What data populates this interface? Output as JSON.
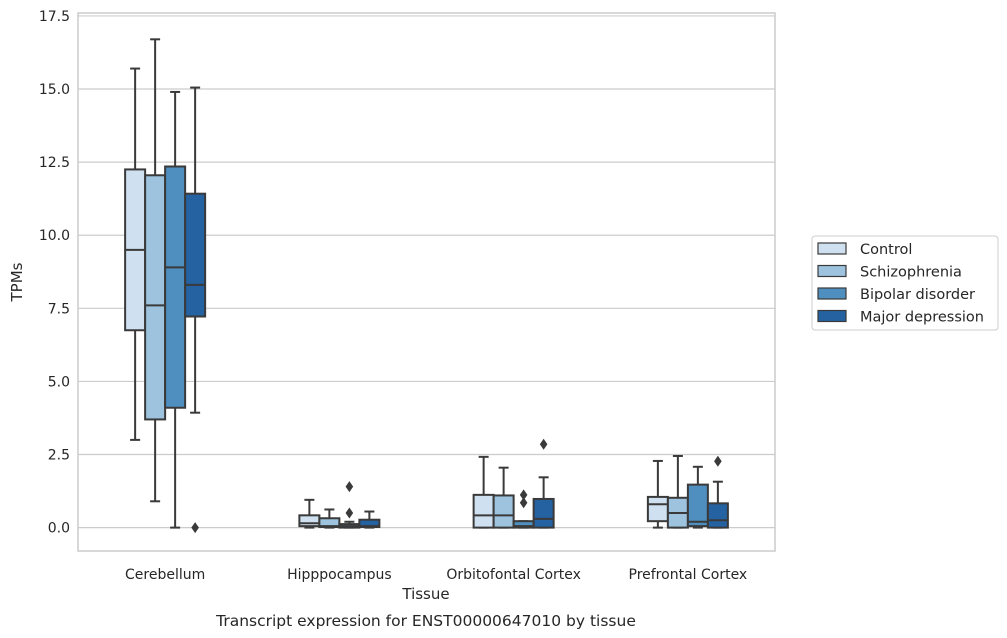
{
  "caption": "Transcript expression for ENST00000647010 by tissue",
  "colors": {
    "grid": "#cccccc",
    "frame": "#cccccc",
    "lines": "#3a3a3a",
    "background": "#ffffff"
  },
  "chart_data": {
    "type": "box",
    "xlabel": "Tissue",
    "ylabel": "TPMs",
    "ylim": [
      -0.8,
      17.6
    ],
    "yticks": [
      0.0,
      2.5,
      5.0,
      7.5,
      10.0,
      12.5,
      15.0,
      17.5
    ],
    "ytick_labels": [
      "0.0",
      "2.5",
      "5.0",
      "7.5",
      "10.0",
      "12.5",
      "15.0",
      "17.5"
    ],
    "grid": true,
    "legend_position": "right",
    "categories": [
      "Cerebellum",
      "Hipppocampus",
      "Orbitofontal Cortex",
      "Prefrontal Cortex"
    ],
    "series": [
      {
        "name": "Control",
        "color": "#cfe1f1",
        "boxes": [
          {
            "whislo": 3.0,
            "q1": 6.75,
            "med": 9.5,
            "q3": 12.25,
            "whishi": 15.7,
            "fliers": []
          },
          {
            "whislo": 0.0,
            "q1": 0.05,
            "med": 0.15,
            "q3": 0.42,
            "whishi": 0.95,
            "fliers": []
          },
          {
            "whislo": 0.0,
            "q1": 0.0,
            "med": 0.42,
            "q3": 1.12,
            "whishi": 2.42,
            "fliers": []
          },
          {
            "whislo": 0.0,
            "q1": 0.22,
            "med": 0.8,
            "q3": 1.05,
            "whishi": 2.28,
            "fliers": []
          }
        ]
      },
      {
        "name": "Schizophrenia",
        "color": "#9dc3de",
        "boxes": [
          {
            "whislo": 0.9,
            "q1": 3.7,
            "med": 7.6,
            "q3": 12.05,
            "whishi": 16.7,
            "fliers": []
          },
          {
            "whislo": 0.0,
            "q1": 0.02,
            "med": 0.05,
            "q3": 0.32,
            "whishi": 0.62,
            "fliers": []
          },
          {
            "whislo": 0.0,
            "q1": 0.0,
            "med": 0.42,
            "q3": 1.1,
            "whishi": 2.05,
            "fliers": []
          },
          {
            "whislo": 0.0,
            "q1": 0.0,
            "med": 0.5,
            "q3": 1.02,
            "whishi": 2.45,
            "fliers": []
          }
        ]
      },
      {
        "name": "Bipolar disorder",
        "color": "#4f8fbf",
        "boxes": [
          {
            "whislo": 0.0,
            "q1": 4.1,
            "med": 8.9,
            "q3": 12.35,
            "whishi": 14.9,
            "fliers": []
          },
          {
            "whislo": 0.0,
            "q1": 0.0,
            "med": 0.05,
            "q3": 0.12,
            "whishi": 0.2,
            "fliers": [
              1.4,
              0.5
            ]
          },
          {
            "whislo": 0.0,
            "q1": 0.0,
            "med": 0.05,
            "q3": 0.22,
            "whishi": 0.22,
            "fliers": [
              1.12,
              0.85
            ]
          },
          {
            "whislo": 0.0,
            "q1": 0.05,
            "med": 0.2,
            "q3": 1.47,
            "whishi": 2.08,
            "fliers": []
          }
        ]
      },
      {
        "name": "Major depression",
        "color": "#2462a2",
        "boxes": [
          {
            "whislo": 3.93,
            "q1": 7.22,
            "med": 8.3,
            "q3": 11.42,
            "whishi": 15.05,
            "fliers": [
              0.0
            ]
          },
          {
            "whislo": 0.0,
            "q1": 0.02,
            "med": 0.05,
            "q3": 0.27,
            "whishi": 0.55,
            "fliers": []
          },
          {
            "whislo": 0.0,
            "q1": 0.0,
            "med": 0.3,
            "q3": 0.98,
            "whishi": 1.72,
            "fliers": [
              2.85
            ]
          },
          {
            "whislo": 0.0,
            "q1": 0.0,
            "med": 0.25,
            "q3": 0.83,
            "whishi": 1.57,
            "fliers": [
              2.27
            ]
          }
        ]
      }
    ]
  }
}
